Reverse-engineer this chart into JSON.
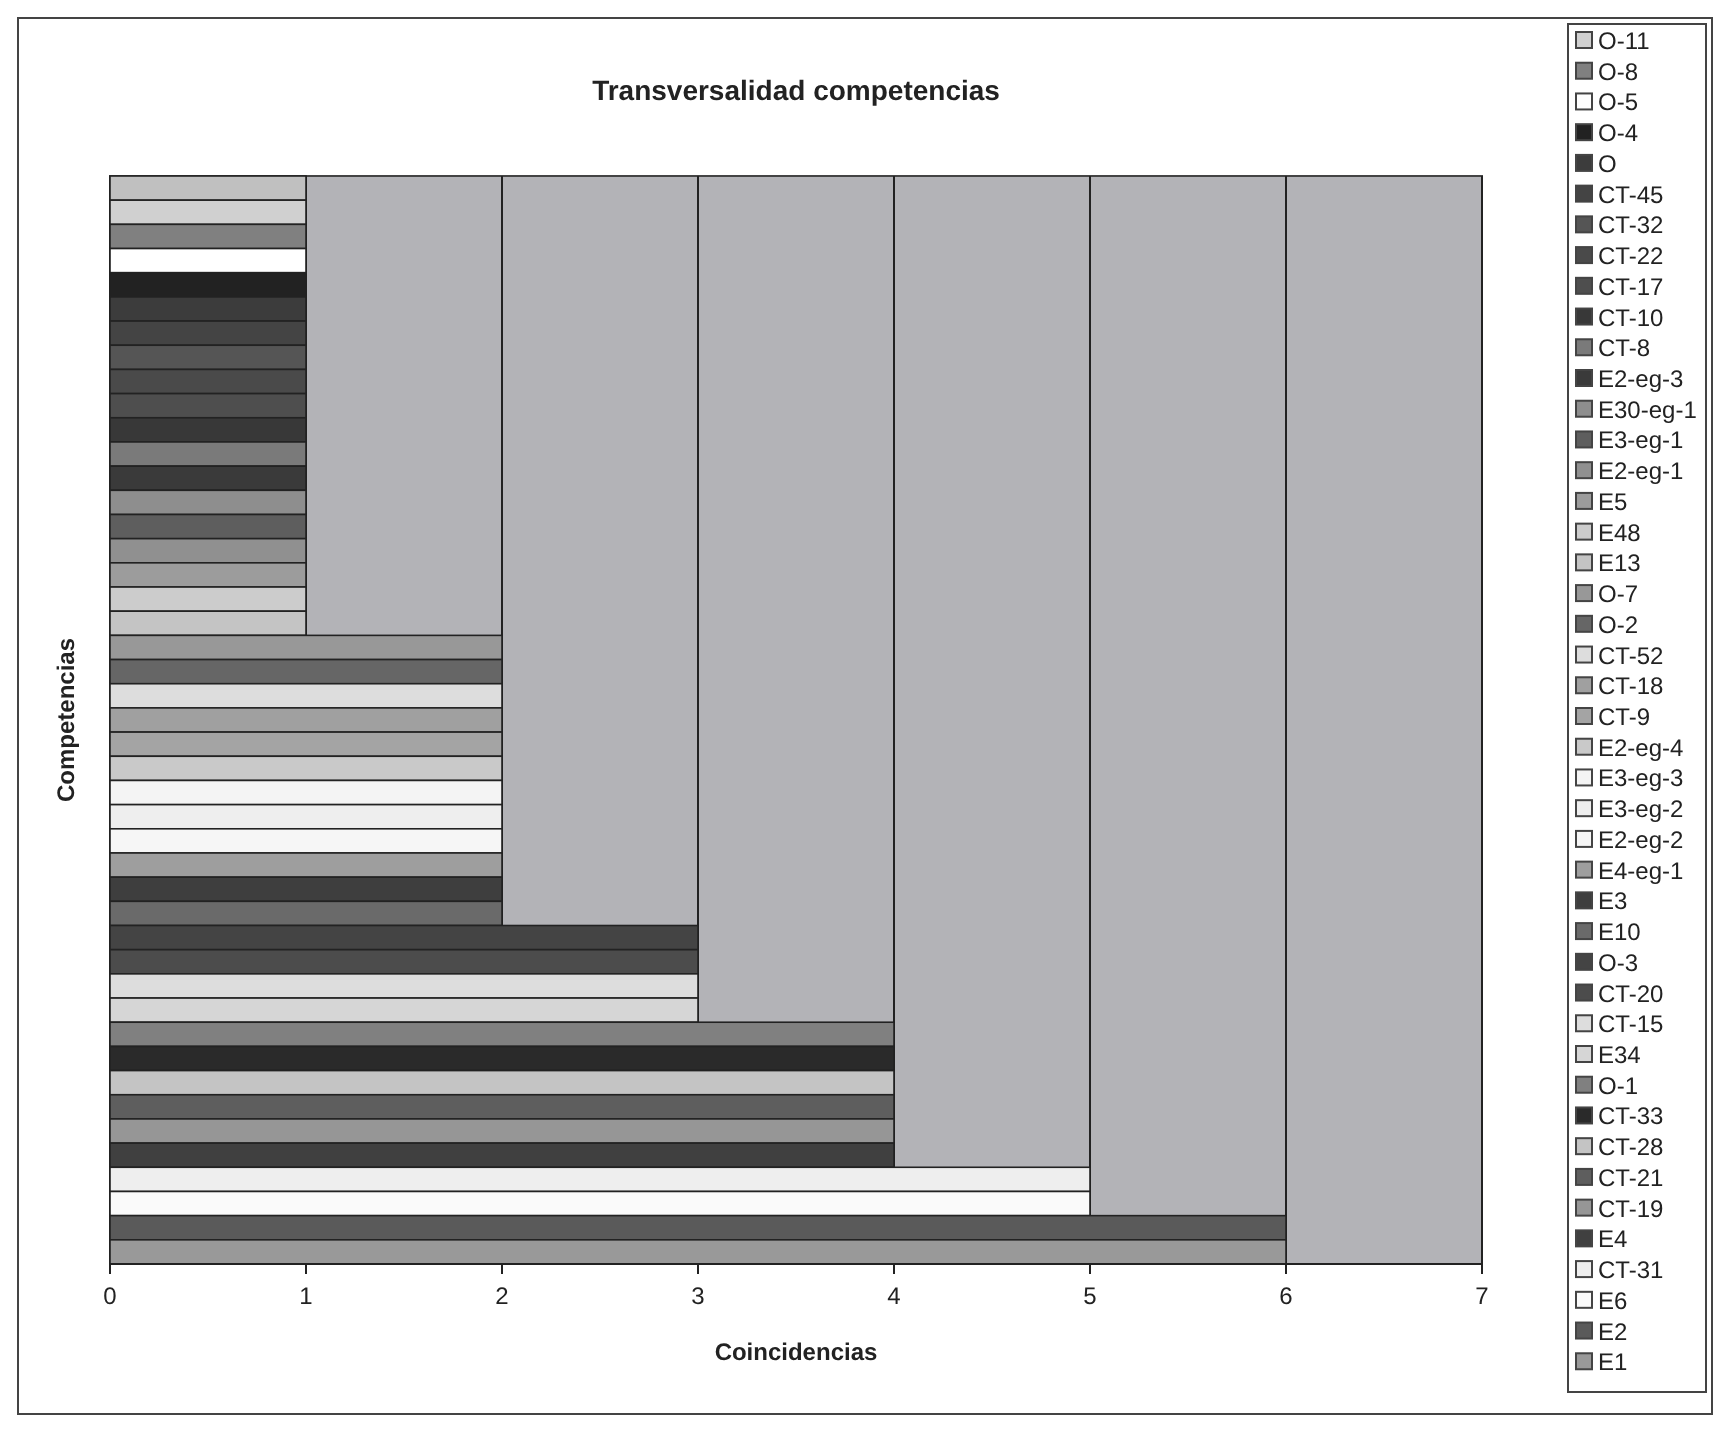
{
  "chart_data": {
    "type": "bar",
    "orientation": "horizontal",
    "title": "Transversalidad competencias",
    "xlabel": "Coincidencias",
    "ylabel": "Competencias",
    "categories": [
      null
    ],
    "xlim": [
      0,
      7
    ],
    "xticks": [
      0,
      1,
      2,
      3,
      4,
      5,
      6,
      7
    ],
    "grid": "x",
    "legend": "right",
    "series": [
      {
        "color": "#c0c0c0",
        "values": [
          1
        ]
      },
      {
        "name": "O-11",
        "color": "#d0d0d0",
        "values": [
          1
        ]
      },
      {
        "name": "O-8",
        "color": "#808080",
        "values": [
          1
        ]
      },
      {
        "name": "O-5",
        "color": "#ffffff",
        "values": [
          1
        ]
      },
      {
        "name": "O-4",
        "color": "#222222",
        "values": [
          1
        ]
      },
      {
        "name": "O",
        "color": "#3c3c3c",
        "values": [
          1
        ]
      },
      {
        "name": "CT-45",
        "color": "#444444",
        "values": [
          1
        ]
      },
      {
        "name": "CT-32",
        "color": "#555555",
        "values": [
          1
        ]
      },
      {
        "name": "CT-22",
        "color": "#4a4a4a",
        "values": [
          1
        ]
      },
      {
        "name": "CT-17",
        "color": "#4e4e4e",
        "values": [
          1
        ]
      },
      {
        "name": "CT-10",
        "color": "#383838",
        "values": [
          1
        ]
      },
      {
        "name": "CT-8",
        "color": "#7a7a7a",
        "values": [
          1
        ]
      },
      {
        "name": "E2-eg-3",
        "color": "#3a3a3a",
        "values": [
          1
        ]
      },
      {
        "name": "E30-eg-1",
        "color": "#8e8e8e",
        "values": [
          1
        ]
      },
      {
        "name": "E3-eg-1",
        "color": "#5e5e5e",
        "values": [
          1
        ]
      },
      {
        "name": "E2-eg-1",
        "color": "#909090",
        "values": [
          1
        ]
      },
      {
        "name": "E5",
        "color": "#9c9c9c",
        "values": [
          1
        ]
      },
      {
        "name": "E48",
        "color": "#cccccc",
        "values": [
          1
        ]
      },
      {
        "name": "E13",
        "color": "#c4c4c4",
        "values": [
          1
        ]
      },
      {
        "name": "O-7",
        "color": "#989898",
        "values": [
          2
        ]
      },
      {
        "name": "O-2",
        "color": "#666666",
        "values": [
          2
        ]
      },
      {
        "name": "CT-52",
        "color": "#dddddd",
        "values": [
          2
        ]
      },
      {
        "name": "CT-18",
        "color": "#a0a0a0",
        "values": [
          2
        ]
      },
      {
        "name": "CT-9",
        "color": "#a4a4a4",
        "values": [
          2
        ]
      },
      {
        "name": "E2-eg-4",
        "color": "#c9c9c9",
        "values": [
          2
        ]
      },
      {
        "name": "E3-eg-3",
        "color": "#f4f4f4",
        "values": [
          2
        ]
      },
      {
        "name": "E3-eg-2",
        "color": "#eeeeee",
        "values": [
          2
        ]
      },
      {
        "name": "E2-eg-2",
        "color": "#f6f6f6",
        "values": [
          2
        ]
      },
      {
        "name": "E4-eg-1",
        "color": "#9e9e9e",
        "values": [
          2
        ]
      },
      {
        "name": "E3",
        "color": "#3e3e3e",
        "values": [
          2
        ]
      },
      {
        "name": "E10",
        "color": "#6a6a6a",
        "values": [
          2
        ]
      },
      {
        "name": "O-3",
        "color": "#444444",
        "values": [
          3
        ]
      },
      {
        "name": "CT-20",
        "color": "#4c4c4c",
        "values": [
          3
        ]
      },
      {
        "name": "CT-15",
        "color": "#dddddd",
        "values": [
          3
        ]
      },
      {
        "name": "E34",
        "color": "#d6d6d6",
        "values": [
          3
        ]
      },
      {
        "name": "O-1",
        "color": "#808080",
        "values": [
          4
        ]
      },
      {
        "name": "CT-33",
        "color": "#2a2a2a",
        "values": [
          4
        ]
      },
      {
        "name": "CT-28",
        "color": "#c4c4c4",
        "values": [
          4
        ]
      },
      {
        "name": "CT-21",
        "color": "#5e5e5e",
        "values": [
          4
        ]
      },
      {
        "name": "CT-19",
        "color": "#969696",
        "values": [
          4
        ]
      },
      {
        "name": "E4",
        "color": "#404040",
        "values": [
          4
        ]
      },
      {
        "name": "CT-31",
        "color": "#eeeeee",
        "values": [
          5
        ]
      },
      {
        "name": "E6",
        "color": "#fafafa",
        "values": [
          5
        ]
      },
      {
        "name": "E2",
        "color": "#5a5a5a",
        "values": [
          6
        ]
      },
      {
        "name": "E1",
        "color": "#999999",
        "values": [
          6
        ]
      }
    ]
  }
}
